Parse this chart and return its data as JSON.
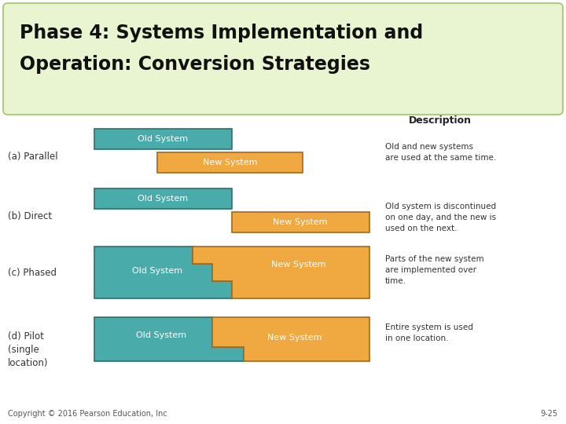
{
  "title_line1": "Phase 4: Systems Implementation and",
  "title_line2": "Operation: Conversion Strategies",
  "title_bg_color": "#e8f5d0",
  "title_border_color": "#b0cc80",
  "bg_color": "#ffffff",
  "old_color": "#4aacaa",
  "new_color": "#f0a840",
  "old_border": "#2a7070",
  "new_border": "#a06820",
  "desc_header": "Description",
  "strategies": [
    {
      "label": "(a) Parallel",
      "desc": "Old and new systems\nare used at the same time."
    },
    {
      "label": "(b) Direct",
      "desc": "Old system is discontinued\non one day, and the new is\nused on the next."
    },
    {
      "label": "(c) Phased",
      "desc": "Parts of the new system\nare implemented over\ntime."
    },
    {
      "label": "(d) Pilot\n(single\nlocation)",
      "desc": "Entire system is used\nin one location."
    }
  ],
  "copyright": "Copyright © 2016 Pearson Education, Inc",
  "page_num": "9-25",
  "font_size_title": 17,
  "font_size_label": 8.5,
  "font_size_box": 8,
  "font_size_desc": 7.5,
  "font_size_copyright": 7,
  "font_size_desc_header": 9
}
